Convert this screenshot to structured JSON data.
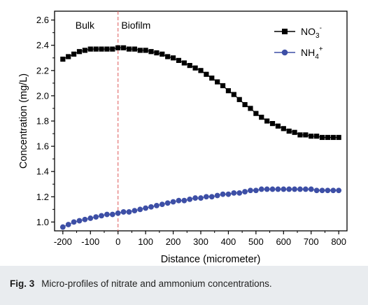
{
  "caption": {
    "label": "Fig. 3",
    "text": "Micro-profiles of nitrate and ammonium concentrations."
  },
  "chart_data": {
    "type": "line",
    "xlabel": "Distance (micrometer)",
    "ylabel": "Concentration (mg/L)",
    "xlim": [
      -230,
      830
    ],
    "ylim": [
      0.93,
      2.67
    ],
    "xticks": [
      -200,
      -100,
      0,
      100,
      200,
      300,
      400,
      500,
      600,
      700,
      800
    ],
    "xtick_labels": [
      "-200",
      "-100",
      "0",
      "100",
      "200",
      "300",
      "400",
      "500",
      "600",
      "700",
      "800"
    ],
    "yticks": [
      1.0,
      1.2,
      1.4,
      1.6,
      1.8,
      2.0,
      2.2,
      2.4,
      2.6
    ],
    "ytick_labels": [
      "1.0",
      "1.2",
      "1.4",
      "1.6",
      "1.8",
      "2.0",
      "2.2",
      "2.4",
      "2.6"
    ],
    "grid": false,
    "legend_position": "top-right",
    "annotations": [
      {
        "text": "Bulk",
        "x": -120,
        "y": 2.56
      },
      {
        "text": "Biofilm",
        "x": 65,
        "y": 2.56
      }
    ],
    "reference_line": {
      "x": 0,
      "style": "dashed",
      "color": "#e06666"
    },
    "series": [
      {
        "name": "NO3-",
        "name_main": "NO",
        "name_sub": "3",
        "name_sup": "-",
        "color": "#000000",
        "marker": "square",
        "x": [
          -200,
          -180,
          -160,
          -140,
          -120,
          -100,
          -80,
          -60,
          -40,
          -20,
          0,
          20,
          40,
          60,
          80,
          100,
          120,
          140,
          160,
          180,
          200,
          220,
          240,
          260,
          280,
          300,
          320,
          340,
          360,
          380,
          400,
          420,
          440,
          460,
          480,
          500,
          520,
          540,
          560,
          580,
          600,
          620,
          640,
          660,
          680,
          700,
          720,
          740,
          760,
          780,
          800
        ],
        "y": [
          2.29,
          2.31,
          2.33,
          2.35,
          2.36,
          2.37,
          2.37,
          2.37,
          2.37,
          2.37,
          2.38,
          2.38,
          2.37,
          2.37,
          2.36,
          2.36,
          2.35,
          2.34,
          2.33,
          2.31,
          2.3,
          2.28,
          2.26,
          2.24,
          2.22,
          2.2,
          2.17,
          2.14,
          2.11,
          2.08,
          2.04,
          2.01,
          1.97,
          1.93,
          1.9,
          1.86,
          1.83,
          1.8,
          1.78,
          1.76,
          1.74,
          1.72,
          1.71,
          1.69,
          1.69,
          1.68,
          1.68,
          1.67,
          1.67,
          1.67,
          1.67
        ]
      },
      {
        "name": "NH4+",
        "name_main": "NH",
        "name_sub": "4",
        "name_sup": "+",
        "color": "#3d4fa6",
        "marker": "circle",
        "x": [
          -200,
          -180,
          -160,
          -140,
          -120,
          -100,
          -80,
          -60,
          -40,
          -20,
          0,
          20,
          40,
          60,
          80,
          100,
          120,
          140,
          160,
          180,
          200,
          220,
          240,
          260,
          280,
          300,
          320,
          340,
          360,
          380,
          400,
          420,
          440,
          460,
          480,
          500,
          520,
          540,
          560,
          580,
          600,
          620,
          640,
          660,
          680,
          700,
          720,
          740,
          760,
          780,
          800
        ],
        "y": [
          0.96,
          0.98,
          1.0,
          1.01,
          1.02,
          1.03,
          1.04,
          1.05,
          1.06,
          1.06,
          1.07,
          1.08,
          1.08,
          1.09,
          1.1,
          1.11,
          1.12,
          1.13,
          1.14,
          1.15,
          1.16,
          1.17,
          1.17,
          1.18,
          1.19,
          1.19,
          1.2,
          1.2,
          1.21,
          1.22,
          1.22,
          1.23,
          1.23,
          1.24,
          1.25,
          1.25,
          1.26,
          1.26,
          1.26,
          1.26,
          1.26,
          1.26,
          1.26,
          1.26,
          1.26,
          1.26,
          1.25,
          1.25,
          1.25,
          1.25,
          1.25
        ]
      }
    ]
  }
}
